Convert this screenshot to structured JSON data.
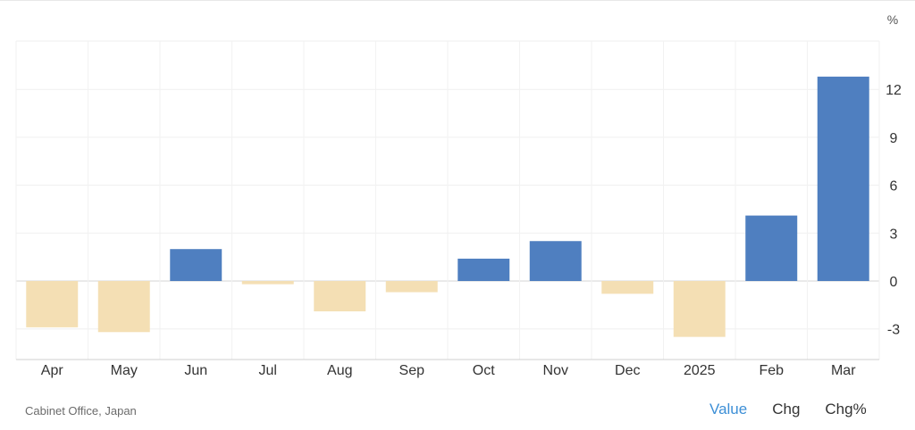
{
  "chart_data": {
    "type": "bar",
    "unit": "%",
    "categories": [
      "Apr",
      "May",
      "Jun",
      "Jul",
      "Aug",
      "Sep",
      "Oct",
      "Nov",
      "Dec",
      "2025",
      "Feb",
      "Mar"
    ],
    "values": [
      -2.9,
      -3.2,
      2.0,
      -0.2,
      -1.9,
      -0.7,
      1.4,
      2.5,
      -0.8,
      -3.5,
      4.1,
      12.8
    ],
    "ylim": [
      -5,
      15
    ],
    "yticks": [
      -3,
      0,
      3,
      6,
      9,
      12
    ],
    "colors": {
      "positive": "#4f7fc0",
      "negative": "#f4dfb4"
    },
    "grid": true
  },
  "footer": {
    "source": "Cabinet Office, Japan",
    "tabs": [
      {
        "label": "Value",
        "active": true
      },
      {
        "label": "Chg",
        "active": false
      },
      {
        "label": "Chg%",
        "active": false
      }
    ],
    "active_color": "#3d8fd6"
  }
}
